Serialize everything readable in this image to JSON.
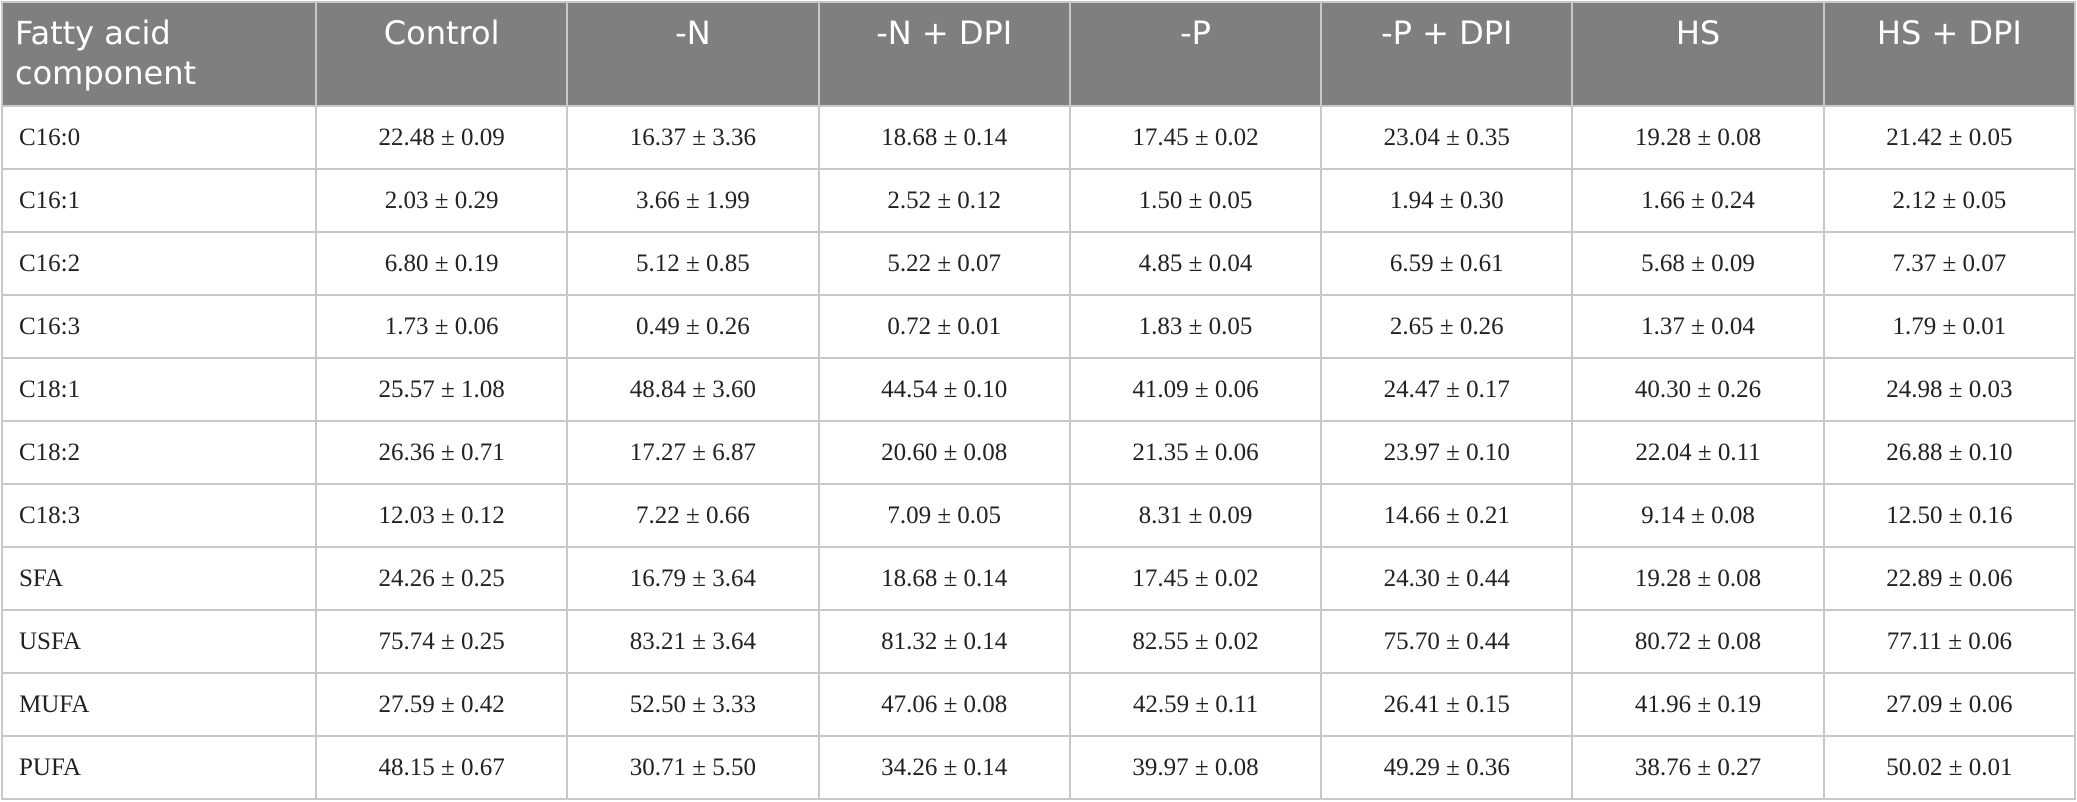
{
  "table": {
    "header": [
      "Fatty acid component",
      "Control",
      "-N",
      "-N + DPI",
      "-P",
      "-P + DPI",
      "HS",
      "HS + DPI"
    ],
    "rows": [
      [
        "C16:0",
        "22.48 ± 0.09",
        "16.37 ± 3.36",
        "18.68 ± 0.14",
        "17.45 ± 0.02",
        "23.04 ± 0.35",
        "19.28 ± 0.08",
        "21.42 ± 0.05"
      ],
      [
        "C16:1",
        "2.03 ± 0.29",
        "3.66 ± 1.99",
        "2.52 ± 0.12",
        "1.50 ± 0.05",
        "1.94 ± 0.30",
        "1.66 ± 0.24",
        "2.12 ± 0.05"
      ],
      [
        "C16:2",
        "6.80 ± 0.19",
        "5.12 ± 0.85",
        "5.22 ± 0.07",
        "4.85 ± 0.04",
        "6.59 ± 0.61",
        "5.68 ± 0.09",
        "7.37 ± 0.07"
      ],
      [
        "C16:3",
        "1.73 ± 0.06",
        "0.49 ± 0.26",
        "0.72 ± 0.01",
        "1.83 ± 0.05",
        "2.65 ± 0.26",
        "1.37 ± 0.04",
        "1.79 ± 0.01"
      ],
      [
        "C18:1",
        "25.57 ± 1.08",
        "48.84 ± 3.60",
        "44.54 ± 0.10",
        "41.09 ± 0.06",
        "24.47 ± 0.17",
        "40.30 ± 0.26",
        "24.98 ± 0.03"
      ],
      [
        "C18:2",
        "26.36 ± 0.71",
        "17.27 ± 6.87",
        "20.60 ± 0.08",
        "21.35 ± 0.06",
        "23.97 ± 0.10",
        "22.04 ± 0.11",
        "26.88 ± 0.10"
      ],
      [
        "C18:3",
        "12.03 ± 0.12",
        "7.22 ± 0.66",
        "7.09 ± 0.05",
        "8.31 ± 0.09",
        "14.66 ± 0.21",
        "9.14 ± 0.08",
        "12.50 ± 0.16"
      ],
      [
        "SFA",
        "24.26 ± 0.25",
        "16.79 ± 3.64",
        "18.68 ± 0.14",
        "17.45 ± 0.02",
        "24.30 ± 0.44",
        "19.28 ± 0.08",
        "22.89 ± 0.06"
      ],
      [
        "USFA",
        "75.74 ± 0.25",
        "83.21 ± 3.64",
        "81.32 ± 0.14",
        "82.55 ± 0.02",
        "75.70 ± 0.44",
        "80.72 ± 0.08",
        "77.11 ± 0.06"
      ],
      [
        "MUFA",
        "27.59 ± 0.42",
        "52.50 ± 3.33",
        "47.06 ± 0.08",
        "42.59 ± 0.11",
        "26.41 ± 0.15",
        "41.96 ± 0.19",
        "27.09 ± 0.06"
      ],
      [
        "PUFA",
        "48.15 ± 0.67",
        "30.71 ± 5.50",
        "34.26 ± 0.14",
        "39.97 ± 0.08",
        "49.29 ± 0.36",
        "38.76 ± 0.27",
        "50.02 ± 0.01"
      ]
    ]
  }
}
